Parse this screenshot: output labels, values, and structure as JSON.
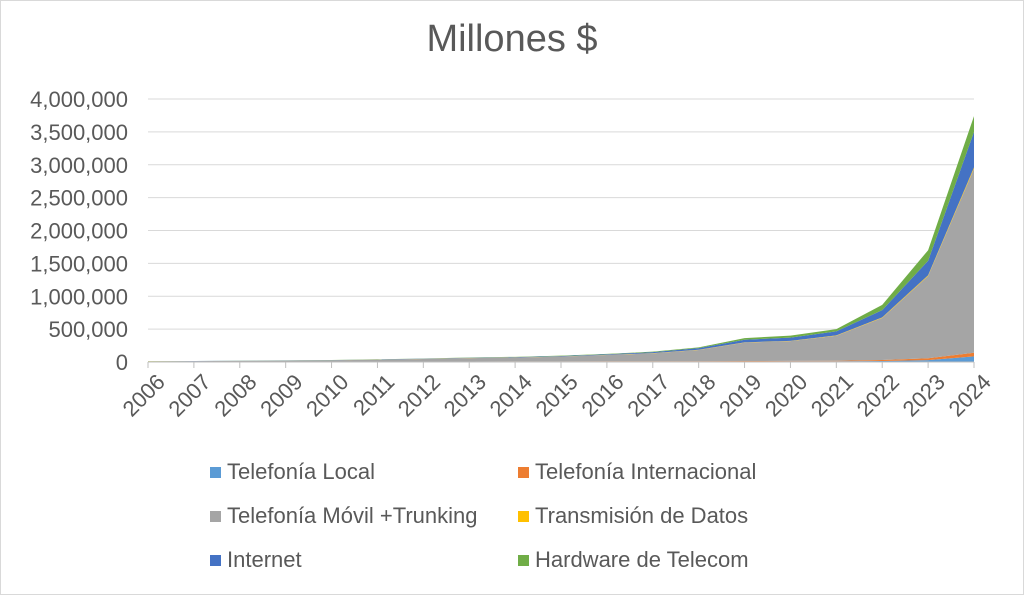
{
  "chart_data": {
    "type": "area",
    "stacked": true,
    "title": "Millones $",
    "xlabel": "",
    "ylabel": "",
    "ylim": [
      0,
      4000000
    ],
    "y_ticks": [
      0,
      500000,
      1000000,
      1500000,
      2000000,
      2500000,
      3000000,
      3500000,
      4000000
    ],
    "y_tick_labels": [
      "0",
      "500,000",
      "1,000,000",
      "1,500,000",
      "2,000,000",
      "2,500,000",
      "3,000,000",
      "3,500,000",
      "4,000,000"
    ],
    "grid": true,
    "legend_position": "bottom",
    "categories": [
      "2006",
      "2007",
      "2008",
      "2009",
      "2010",
      "2011",
      "2012",
      "2013",
      "2014",
      "2015",
      "2016",
      "2017",
      "2018",
      "2019",
      "2020",
      "2021",
      "2022",
      "2023",
      "2024"
    ],
    "series": [
      {
        "name": "Telefonía Local",
        "color": "#5b9bd5",
        "values": [
          3000,
          3500,
          4000,
          4500,
          5000,
          5500,
          6000,
          6500,
          7000,
          7500,
          8000,
          8500,
          9000,
          10000,
          11000,
          12000,
          16000,
          28000,
          85000
        ]
      },
      {
        "name": "Telefonía Internacional",
        "color": "#ed7d31",
        "values": [
          1000,
          1000,
          1000,
          1200,
          1300,
          1500,
          1700,
          2000,
          2200,
          2500,
          3000,
          3500,
          4000,
          5000,
          6000,
          8000,
          15000,
          30000,
          55000
        ]
      },
      {
        "name": "Telefonía Móvil +Trunking",
        "color": "#a5a5a5",
        "values": [
          6000,
          8000,
          12000,
          15000,
          20000,
          28000,
          38000,
          50000,
          58000,
          72000,
          95000,
          120000,
          170000,
          280000,
          300000,
          380000,
          640000,
          1250000,
          2800000
        ]
      },
      {
        "name": "Transmisión de Datos",
        "color": "#ffc000",
        "values": [
          500,
          600,
          700,
          800,
          900,
          1000,
          1200,
          1400,
          1600,
          1800,
          2000,
          2500,
          3000,
          4000,
          4500,
          5000,
          8000,
          12000,
          20000
        ]
      },
      {
        "name": "Internet",
        "color": "#4472c4",
        "values": [
          1000,
          1200,
          1500,
          1800,
          2200,
          3000,
          4000,
          5000,
          6000,
          8000,
          10000,
          15000,
          25000,
          40000,
          50000,
          60000,
          110000,
          220000,
          540000
        ]
      },
      {
        "name": "Hardware de Telecom",
        "color": "#70ad47",
        "values": [
          1000,
          1200,
          1500,
          1800,
          2000,
          2500,
          3000,
          3500,
          4000,
          5000,
          6000,
          8000,
          12000,
          25000,
          30000,
          35000,
          80000,
          160000,
          240000
        ]
      }
    ]
  }
}
